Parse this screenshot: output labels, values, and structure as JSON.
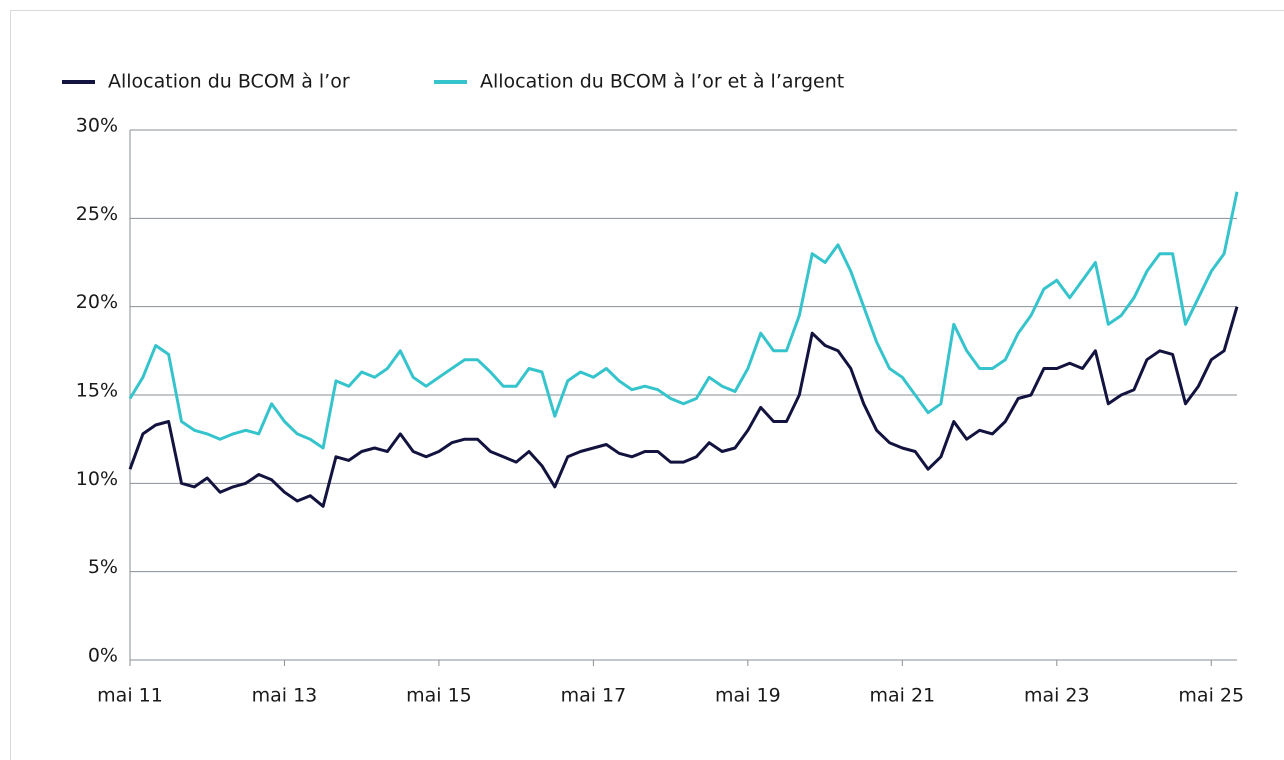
{
  "chart_data": {
    "type": "line",
    "categories": [
      "mai 11",
      null,
      null,
      null,
      null,
      null,
      null,
      null,
      null,
      null,
      null,
      null,
      "mai 13",
      null,
      null,
      null,
      null,
      null,
      null,
      null,
      null,
      null,
      null,
      null,
      "mai 15",
      null,
      null,
      null,
      null,
      null,
      null,
      null,
      null,
      null,
      null,
      null,
      "mai 17",
      null,
      null,
      null,
      null,
      null,
      null,
      null,
      null,
      null,
      null,
      null,
      "mai 19",
      null,
      null,
      null,
      null,
      null,
      null,
      null,
      null,
      null,
      null,
      null,
      "mai 21",
      null,
      null,
      null,
      null,
      null,
      null,
      null,
      null,
      null,
      null,
      null,
      "mai 23",
      null,
      null,
      null,
      null,
      null,
      null,
      null,
      null,
      null,
      null,
      null,
      "mai 25",
      null,
      null
    ],
    "series": [
      {
        "name": "Allocation du BCOM à l’or",
        "color": "#13133f",
        "values": [
          10.8,
          12.8,
          13.3,
          13.5,
          10.0,
          9.8,
          10.3,
          9.5,
          9.8,
          10.0,
          10.5,
          10.2,
          9.5,
          9.0,
          9.3,
          8.7,
          11.5,
          11.3,
          11.8,
          12.0,
          11.8,
          12.8,
          11.8,
          11.5,
          11.8,
          12.3,
          12.5,
          12.5,
          11.8,
          11.5,
          11.2,
          11.8,
          11.0,
          9.8,
          11.5,
          11.8,
          12.0,
          12.2,
          11.7,
          11.5,
          11.8,
          11.8,
          11.2,
          11.2,
          11.5,
          12.3,
          11.8,
          12.0,
          13.0,
          14.3,
          13.5,
          13.5,
          15.0,
          18.5,
          17.8,
          17.5,
          16.5,
          14.5,
          13.0,
          12.3,
          12.0,
          11.8,
          10.8,
          11.5,
          13.5,
          12.5,
          13.0,
          12.8,
          13.5,
          14.8,
          15.0,
          16.5,
          16.5,
          16.8,
          16.5,
          17.5,
          14.5,
          15.0,
          15.3,
          17.0,
          17.5,
          17.3,
          14.5,
          15.5,
          17.0,
          17.5,
          20.0
        ]
      },
      {
        "name": "Allocation du BCOM à l’or et à l’argent",
        "color": "#36c4cc",
        "values": [
          14.8,
          16.0,
          17.8,
          17.3,
          13.5,
          13.0,
          12.8,
          12.5,
          12.8,
          13.0,
          12.8,
          14.5,
          13.5,
          12.8,
          12.5,
          12.0,
          15.8,
          15.5,
          16.3,
          16.0,
          16.5,
          17.5,
          16.0,
          15.5,
          16.0,
          16.5,
          17.0,
          17.0,
          16.3,
          15.5,
          15.5,
          16.5,
          16.3,
          13.8,
          15.8,
          16.3,
          16.0,
          16.5,
          15.8,
          15.3,
          15.5,
          15.3,
          14.8,
          14.5,
          14.8,
          16.0,
          15.5,
          15.2,
          16.5,
          18.5,
          17.5,
          17.5,
          19.5,
          23.0,
          22.5,
          23.5,
          22.0,
          20.0,
          18.0,
          16.5,
          16.0,
          15.0,
          14.0,
          14.5,
          19.0,
          17.5,
          16.5,
          16.5,
          17.0,
          18.5,
          19.5,
          21.0,
          21.5,
          20.5,
          21.5,
          22.5,
          19.0,
          19.5,
          20.5,
          22.0,
          23.0,
          23.0,
          19.0,
          20.5,
          22.0,
          23.0,
          26.5
        ]
      }
    ],
    "ylim": [
      0,
      30
    ],
    "yticks": [
      {
        "value": 0,
        "label": "0%"
      },
      {
        "value": 5,
        "label": "5%"
      },
      {
        "value": 10,
        "label": "10%"
      },
      {
        "value": 15,
        "label": "15%"
      },
      {
        "value": 20,
        "label": "20%"
      },
      {
        "value": 25,
        "label": "25%"
      },
      {
        "value": 30,
        "label": "30%"
      }
    ],
    "grid": true,
    "legend": "top-left"
  }
}
